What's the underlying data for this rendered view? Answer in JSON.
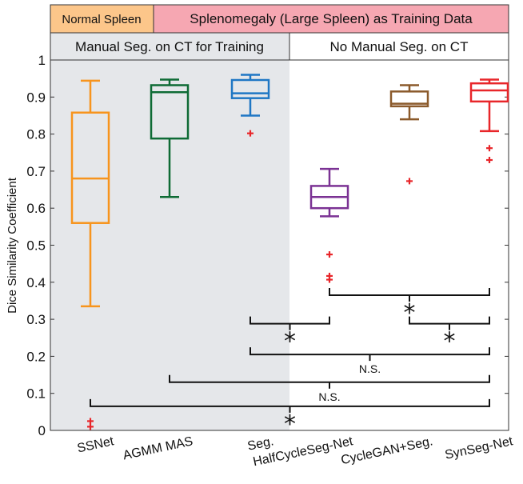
{
  "header": {
    "normal_spleen": "Normal Spleen",
    "splenomegaly": "Splenomegaly (Large Spleen)  as Training Data",
    "manual_seg": "Manual Seg. on CT for Training",
    "no_manual_seg": "No Manual Seg. on CT",
    "colors": {
      "normal": "#fcc68a",
      "splenomegaly": "#f6a7b2",
      "manual_bg": "#e5e7ea"
    }
  },
  "chart_data": {
    "type": "box",
    "ylabel": "Dice Similarity Coefficient",
    "xlabel": "",
    "ylim": [
      0,
      1
    ],
    "yticks": [
      "0",
      "0.1",
      "0.2",
      "0.3",
      "0.4",
      "0.5",
      "0.6",
      "0.7",
      "0.8",
      "0.9",
      "1"
    ],
    "categories": [
      "SSNet",
      "AGMM MAS",
      "Seg.",
      "HalfCycleSeg-Net",
      "CycleGAN+Seg.",
      "SynSeg-Net"
    ],
    "series": [
      {
        "category": "SSNet",
        "color": "#f7941d",
        "whisker_low": 0.335,
        "q1": 0.56,
        "median": 0.68,
        "q3": 0.858,
        "whisker_high": 0.944,
        "outliers": [
          0.025,
          0.01
        ]
      },
      {
        "category": "AGMM MAS",
        "color": "#0e6b35",
        "whisker_low": 0.63,
        "q1": 0.788,
        "median": 0.913,
        "q3": 0.932,
        "whisker_high": 0.947,
        "outliers": []
      },
      {
        "category": "Seg.",
        "color": "#1f77c4",
        "whisker_low": 0.85,
        "q1": 0.897,
        "median": 0.91,
        "q3": 0.946,
        "whisker_high": 0.96,
        "outliers": [
          0.802
        ]
      },
      {
        "category": "HalfCycleSeg-Net",
        "color": "#7b3294",
        "whisker_low": 0.578,
        "q1": 0.6,
        "median": 0.63,
        "q3": 0.66,
        "whisker_high": 0.706,
        "outliers": [
          0.475,
          0.417,
          0.407
        ]
      },
      {
        "category": "CycleGAN+Seg.",
        "color": "#8b5a2b",
        "whisker_low": 0.84,
        "q1": 0.875,
        "median": 0.882,
        "q3": 0.915,
        "whisker_high": 0.932,
        "outliers": [
          0.673
        ]
      },
      {
        "category": "SynSeg-Net",
        "color": "#e8262a",
        "whisker_low": 0.808,
        "q1": 0.888,
        "median": 0.918,
        "q3": 0.937,
        "whisker_high": 0.947,
        "outliers": [
          0.762,
          0.73
        ]
      }
    ],
    "outlier_color": "#e8262a",
    "grid": false,
    "significance": [
      {
        "from": "HalfCycleSeg-Net",
        "to": "SynSeg-Net",
        "y": 0.365,
        "mark": "*"
      },
      {
        "from": "Seg.",
        "to": "HalfCycleSeg-Net",
        "y": 0.288,
        "mark": "*"
      },
      {
        "from": "CycleGAN+Seg.",
        "to": "SynSeg-Net",
        "y": 0.288,
        "mark": "*"
      },
      {
        "from": "Seg.",
        "to": "SynSeg-Net",
        "y": 0.205,
        "mark": "N.S."
      },
      {
        "from": "AGMM MAS",
        "to": "SynSeg-Net",
        "y": 0.13,
        "mark": "N.S."
      },
      {
        "from": "SSNet",
        "to": "SynSeg-Net",
        "y": 0.065,
        "mark": "*"
      }
    ]
  }
}
